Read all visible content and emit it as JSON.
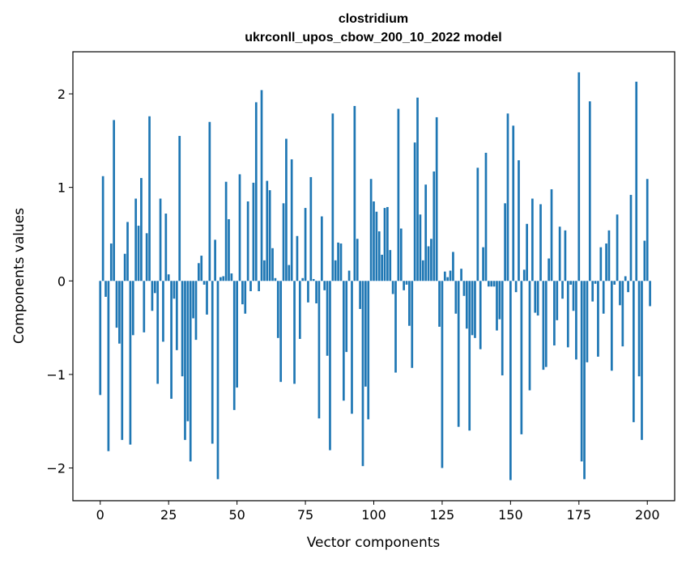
{
  "chart_data": {
    "type": "bar",
    "title": "clostridium",
    "subtitle": "ukrconll_upos_cbow_200_10_2022 model",
    "xlabel": "Vector components",
    "ylabel": "Components values",
    "xlim": [
      -10,
      210
    ],
    "ylim": [
      -2.35,
      2.45
    ],
    "xticks": [
      0,
      25,
      50,
      75,
      100,
      125,
      150,
      175,
      200
    ],
    "yticks": [
      -2,
      -1,
      0,
      1,
      2
    ],
    "ytick_labels": [
      "−2",
      "−1",
      "0",
      "1",
      "2"
    ],
    "grid": false,
    "legend": "none",
    "bar_color": "#1f77b4",
    "values": [
      -1.22,
      1.12,
      -0.17,
      -1.82,
      0.4,
      1.72,
      -0.5,
      -0.67,
      -1.7,
      0.29,
      0.63,
      -1.75,
      -0.58,
      0.88,
      0.59,
      1.1,
      -0.55,
      0.51,
      1.76,
      -0.32,
      -0.13,
      -1.1,
      0.88,
      -0.65,
      0.72,
      0.07,
      -1.26,
      -0.19,
      -0.74,
      1.55,
      -1.02,
      -1.7,
      -1.5,
      -1.93,
      -0.4,
      -0.63,
      0.19,
      0.27,
      -0.04,
      -0.36,
      1.7,
      -1.74,
      0.44,
      -2.12,
      0.04,
      0.05,
      1.06,
      0.66,
      0.08,
      -1.38,
      -1.14,
      1.14,
      -0.25,
      -0.35,
      0.85,
      -0.11,
      1.05,
      1.91,
      -0.11,
      2.04,
      0.22,
      1.07,
      0.97,
      0.35,
      0.03,
      -0.61,
      -1.08,
      0.83,
      1.52,
      0.17,
      1.3,
      -1.1,
      0.48,
      -0.62,
      0.03,
      0.78,
      -0.23,
      1.11,
      0.02,
      -0.24,
      -1.47,
      0.69,
      -0.1,
      -0.8,
      -1.81,
      1.79,
      0.22,
      0.41,
      0.4,
      -1.28,
      -0.76,
      0.11,
      -1.42,
      1.87,
      0.45,
      -0.3,
      -1.98,
      -1.13,
      -1.48,
      1.09,
      0.85,
      0.74,
      0.53,
      0.28,
      0.78,
      0.79,
      0.33,
      -0.14,
      -0.98,
      1.84,
      0.56,
      -0.1,
      -0.04,
      -0.48,
      -0.93,
      1.48,
      1.96,
      0.71,
      0.22,
      1.03,
      0.37,
      0.45,
      1.17,
      1.75,
      -0.49,
      -2.0,
      0.1,
      0.04,
      0.11,
      0.31,
      -0.35,
      -1.56,
      0.13,
      -0.16,
      -0.51,
      -1.6,
      -0.58,
      -0.61,
      1.21,
      -0.73,
      0.36,
      1.37,
      -0.06,
      -0.06,
      -0.06,
      -0.53,
      -0.41,
      -1.01,
      0.83,
      1.79,
      -2.13,
      1.66,
      -0.12,
      1.29,
      -1.64,
      0.12,
      0.61,
      -1.17,
      0.88,
      -0.34,
      -0.37,
      0.82,
      -0.95,
      -0.92,
      0.24,
      0.98,
      -0.69,
      -0.42,
      0.58,
      -0.19,
      0.54,
      -0.71,
      -0.04,
      -0.32,
      -0.84,
      2.23,
      -1.93,
      -2.12,
      -0.87,
      1.92,
      -0.22,
      -0.03,
      -0.81,
      0.36,
      -0.35,
      0.4,
      0.54,
      -0.96,
      -0.04,
      0.71,
      -0.26,
      -0.7,
      0.05,
      -0.12,
      0.92,
      -1.51,
      2.13,
      -1.02,
      -1.7,
      0.43,
      1.09,
      -0.27
    ]
  }
}
